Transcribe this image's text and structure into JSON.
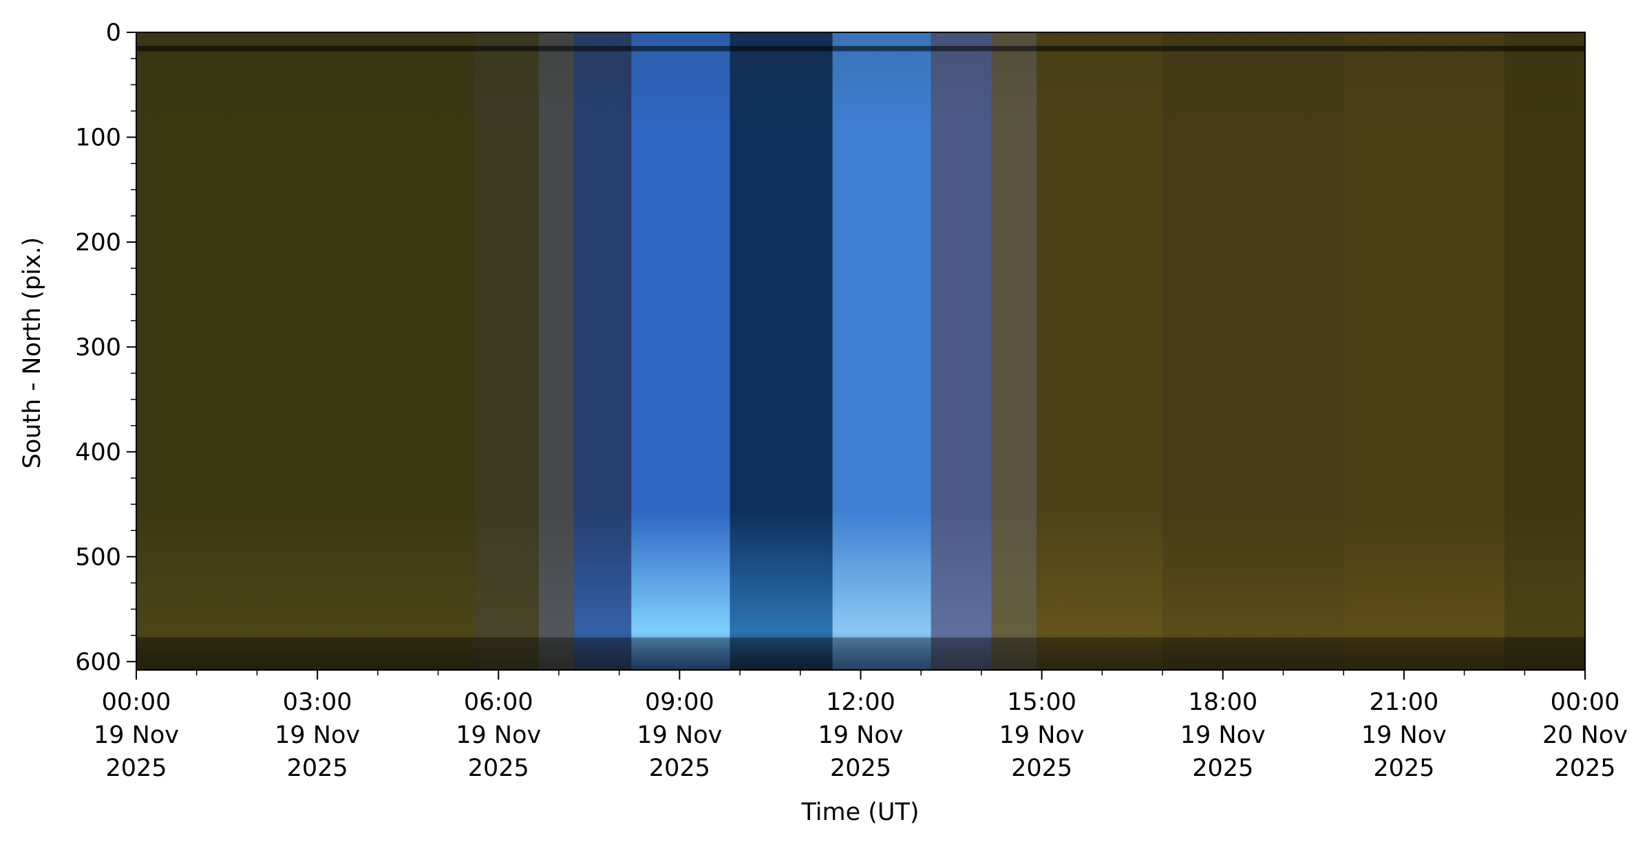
{
  "chart_data": {
    "type": "heatmap",
    "title": "",
    "xlabel": "Time (UT)",
    "ylabel": "South - North (pix.)",
    "grid": false,
    "legend": "none",
    "x_range": [
      "2025-11-19 00:00",
      "2025-11-20 00:00"
    ],
    "ylim": [
      608,
      0
    ],
    "x_ticks": [
      {
        "time": "2025-11-19 00:00",
        "lines": [
          "00:00",
          "19 Nov",
          "2025"
        ]
      },
      {
        "time": "2025-11-19 03:00",
        "lines": [
          "03:00",
          "19 Nov",
          "2025"
        ]
      },
      {
        "time": "2025-11-19 06:00",
        "lines": [
          "06:00",
          "19 Nov",
          "2025"
        ]
      },
      {
        "time": "2025-11-19 09:00",
        "lines": [
          "09:00",
          "19 Nov",
          "2025"
        ]
      },
      {
        "time": "2025-11-19 12:00",
        "lines": [
          "12:00",
          "19 Nov",
          "2025"
        ]
      },
      {
        "time": "2025-11-19 15:00",
        "lines": [
          "15:00",
          "19 Nov",
          "2025"
        ]
      },
      {
        "time": "2025-11-19 18:00",
        "lines": [
          "18:00",
          "19 Nov",
          "2025"
        ]
      },
      {
        "time": "2025-11-19 21:00",
        "lines": [
          "21:00",
          "19 Nov",
          "2025"
        ]
      },
      {
        "time": "2025-11-20 00:00",
        "lines": [
          "00:00",
          "20 Nov",
          "2025"
        ]
      }
    ],
    "y_ticks": [
      0,
      100,
      200,
      300,
      400,
      500,
      600
    ],
    "color_segments": [
      {
        "start": "2025-11-19 00:00",
        "end": "2025-11-19 05:36",
        "color": "#3b3814",
        "glow": "#4c4517"
      },
      {
        "start": "2025-11-19 05:36",
        "end": "2025-11-19 06:40",
        "color": "#3d3a22",
        "glow": "#4a4528"
      },
      {
        "start": "2025-11-19 06:40",
        "end": "2025-11-19 07:15",
        "color": "#46484a",
        "glow": "#53565c"
      },
      {
        "start": "2025-11-19 07:15",
        "end": "2025-11-19 08:12",
        "color": "#253e6e",
        "glow": "#3560a8"
      },
      {
        "start": "2025-11-19 08:12",
        "end": "2025-11-19 09:50",
        "color": "#2f66c2",
        "glow": "#7fd0ff"
      },
      {
        "start": "2025-11-19 09:50",
        "end": "2025-11-19 11:32",
        "color": "#10305c",
        "glow": "#2a74b4"
      },
      {
        "start": "2025-11-19 11:32",
        "end": "2025-11-19 13:10",
        "color": "#3e7fd2",
        "glow": "#8cc8f4"
      },
      {
        "start": "2025-11-19 13:10",
        "end": "2025-11-19 14:10",
        "color": "#4b5a88",
        "glow": "#60709c"
      },
      {
        "start": "2025-11-19 14:10",
        "end": "2025-11-19 14:55",
        "color": "#5b5542",
        "glow": "#66603f"
      },
      {
        "start": "2025-11-19 14:55",
        "end": "2025-11-19 17:00",
        "color": "#4e4218",
        "glow": "#66531c"
      },
      {
        "start": "2025-11-19 17:00",
        "end": "2025-11-19 20:00",
        "color": "#463b16",
        "glow": "#5c4b1a"
      },
      {
        "start": "2025-11-19 20:00",
        "end": "2025-11-19 22:40",
        "color": "#4a3e15",
        "glow": "#5f4d18"
      },
      {
        "start": "2025-11-19 22:40",
        "end": "2025-11-20 00:00",
        "color": "#3f3713",
        "glow": "#4b4215"
      }
    ]
  }
}
